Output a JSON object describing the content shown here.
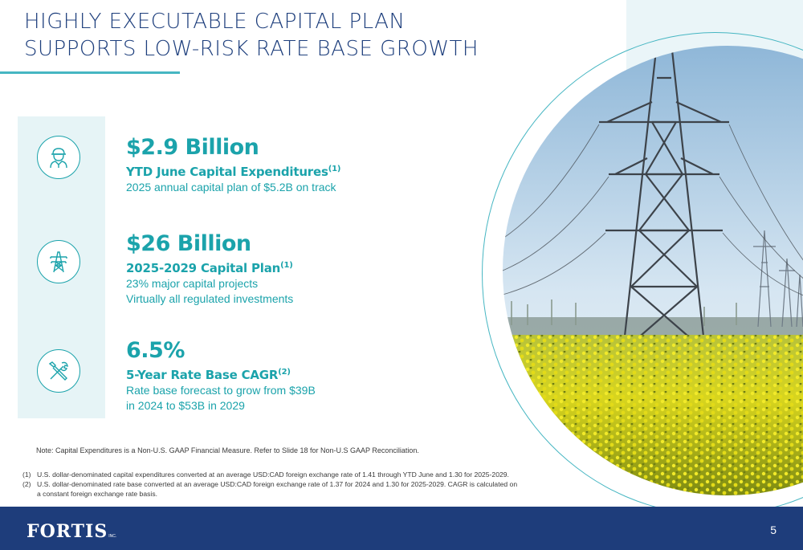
{
  "title": {
    "line1": "HIGHLY EXECUTABLE CAPITAL PLAN",
    "line2": "SUPPORTS LOW-RISK RATE BASE GROWTH"
  },
  "colors": {
    "accent": "#1ba3ab",
    "navy": "#1e3d7b",
    "panel": "#e6f4f6"
  },
  "icons": [
    "worker-icon",
    "transmission-tower-icon",
    "tools-icon"
  ],
  "stats": [
    {
      "value": "$2.9 Billion",
      "label": "YTD June Capital Expenditures",
      "sup": "(1)",
      "desc1": "2025 annual capital plan of $5.2B on track",
      "desc2": ""
    },
    {
      "value": "$26 Billion",
      "label": "2025-2029 Capital Plan",
      "sup": "(1)",
      "desc1": "23% major capital projects",
      "desc2": "Virtually all regulated investments"
    },
    {
      "value": "6.5%",
      "label": "5-Year Rate Base CAGR",
      "sup": "(2)",
      "desc1": "Rate base forecast to grow from $39B",
      "desc2": "in 2024 to $53B in 2029"
    }
  ],
  "note": "Note: Capital Expenditures is a Non-U.S. GAAP Financial Measure. Refer to Slide 18 for Non-U.S GAAP Reconciliation.",
  "footnotes": [
    {
      "num": "(1)",
      "text": "U.S. dollar-denominated capital expenditures converted at an average USD:CAD foreign exchange rate of 1.41 through YTD June and 1.30 for 2025-2029."
    },
    {
      "num": "(2)",
      "text": "U.S. dollar-denominated rate base converted at an average USD:CAD foreign exchange rate of 1.37 for 2024 and 1.30 for 2025-2029. CAGR is calculated on a constant foreign exchange rate basis."
    }
  ],
  "footer": {
    "logo": "FORTIS",
    "logo_suffix": "INC.",
    "page_number": "5"
  }
}
